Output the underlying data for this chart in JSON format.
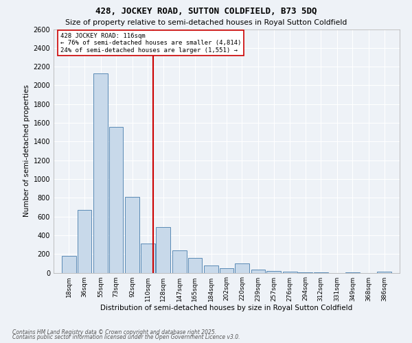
{
  "title1": "428, JOCKEY ROAD, SUTTON COLDFIELD, B73 5DQ",
  "title2": "Size of property relative to semi-detached houses in Royal Sutton Coldfield",
  "xlabel": "Distribution of semi-detached houses by size in Royal Sutton Coldfield",
  "ylabel": "Number of semi-detached properties",
  "property_size": 116,
  "property_label": "428 JOCKEY ROAD: 116sqm",
  "pct_smaller": 76,
  "pct_larger": 24,
  "count_smaller": 4814,
  "count_larger": 1551,
  "annotation_type": "semi-detached",
  "footer1": "Contains HM Land Registry data © Crown copyright and database right 2025.",
  "footer2": "Contains public sector information licensed under the Open Government Licence v3.0.",
  "bar_color": "#c8d9ea",
  "bar_edge_color": "#5a8ab5",
  "vline_color": "#cc0000",
  "box_color": "#cc0000",
  "background_color": "#eef2f7",
  "grid_color": "#ffffff",
  "categories": [
    "18sqm",
    "36sqm",
    "55sqm",
    "73sqm",
    "92sqm",
    "110sqm",
    "128sqm",
    "147sqm",
    "165sqm",
    "184sqm",
    "202sqm",
    "220sqm",
    "239sqm",
    "257sqm",
    "276sqm",
    "294sqm",
    "312sqm",
    "331sqm",
    "349sqm",
    "368sqm",
    "386sqm"
  ],
  "bin_centers": [
    18,
    36,
    55,
    73,
    92,
    110,
    128,
    147,
    165,
    184,
    202,
    220,
    239,
    257,
    276,
    294,
    312,
    331,
    349,
    368,
    386
  ],
  "bin_width": 18,
  "values": [
    180,
    670,
    2130,
    1560,
    810,
    310,
    490,
    240,
    160,
    80,
    50,
    100,
    30,
    20,
    10,
    5,
    2,
    0,
    3,
    0,
    8
  ],
  "ylim": [
    0,
    2600
  ],
  "xlim": [
    0,
    404
  ],
  "yticks": [
    0,
    200,
    400,
    600,
    800,
    1000,
    1200,
    1400,
    1600,
    1800,
    2000,
    2200,
    2400,
    2600
  ]
}
